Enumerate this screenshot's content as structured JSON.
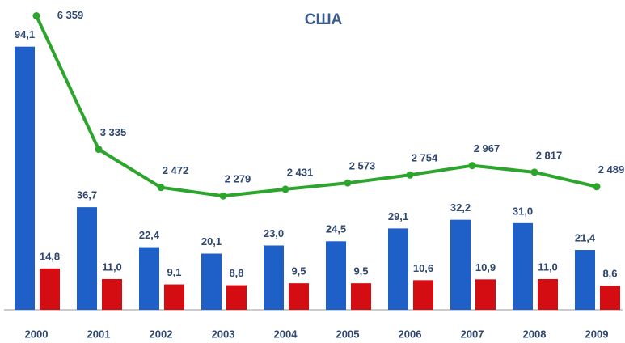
{
  "chart_data": {
    "type": "bar_line",
    "title": "США",
    "categories": [
      "2000",
      "2001",
      "2002",
      "2003",
      "2004",
      "2005",
      "2006",
      "2007",
      "2008",
      "2009"
    ],
    "ylim": [
      0,
      105
    ],
    "y2lim": [
      -300,
      6350
    ],
    "series": [
      {
        "name": null,
        "type": "bar",
        "color": "#1f5fc8",
        "values": [
          94.1,
          36.7,
          22.4,
          20.1,
          23.0,
          24.5,
          29.1,
          32.2,
          31.0,
          21.4
        ],
        "value_labels": [
          "94,1",
          "36,7",
          "22,4",
          "20,1",
          "23,0",
          "24,5",
          "29,1",
          "32,2",
          "31,0",
          "21,4"
        ]
      },
      {
        "name": null,
        "type": "bar",
        "color": "#d40d12",
        "values": [
          14.8,
          11.0,
          9.1,
          8.8,
          9.5,
          9.5,
          10.6,
          10.9,
          11.0,
          8.6
        ],
        "value_labels": [
          "14,8",
          "11,0",
          "9,1",
          "8,8",
          "9,5",
          "9,5",
          "10,6",
          "10,9",
          "11,0",
          "8,6"
        ]
      },
      {
        "name": null,
        "type": "line",
        "axis": "y2",
        "color": "#2ca52c",
        "values": [
          6359,
          3335,
          2472,
          2279,
          2431,
          2573,
          2754,
          2967,
          2817,
          2489
        ],
        "value_labels": [
          "6 359",
          "3 335",
          "2 472",
          "2 279",
          "2 431",
          "2 573",
          "2 754",
          "2 967",
          "2 817",
          "2 489"
        ]
      }
    ]
  }
}
